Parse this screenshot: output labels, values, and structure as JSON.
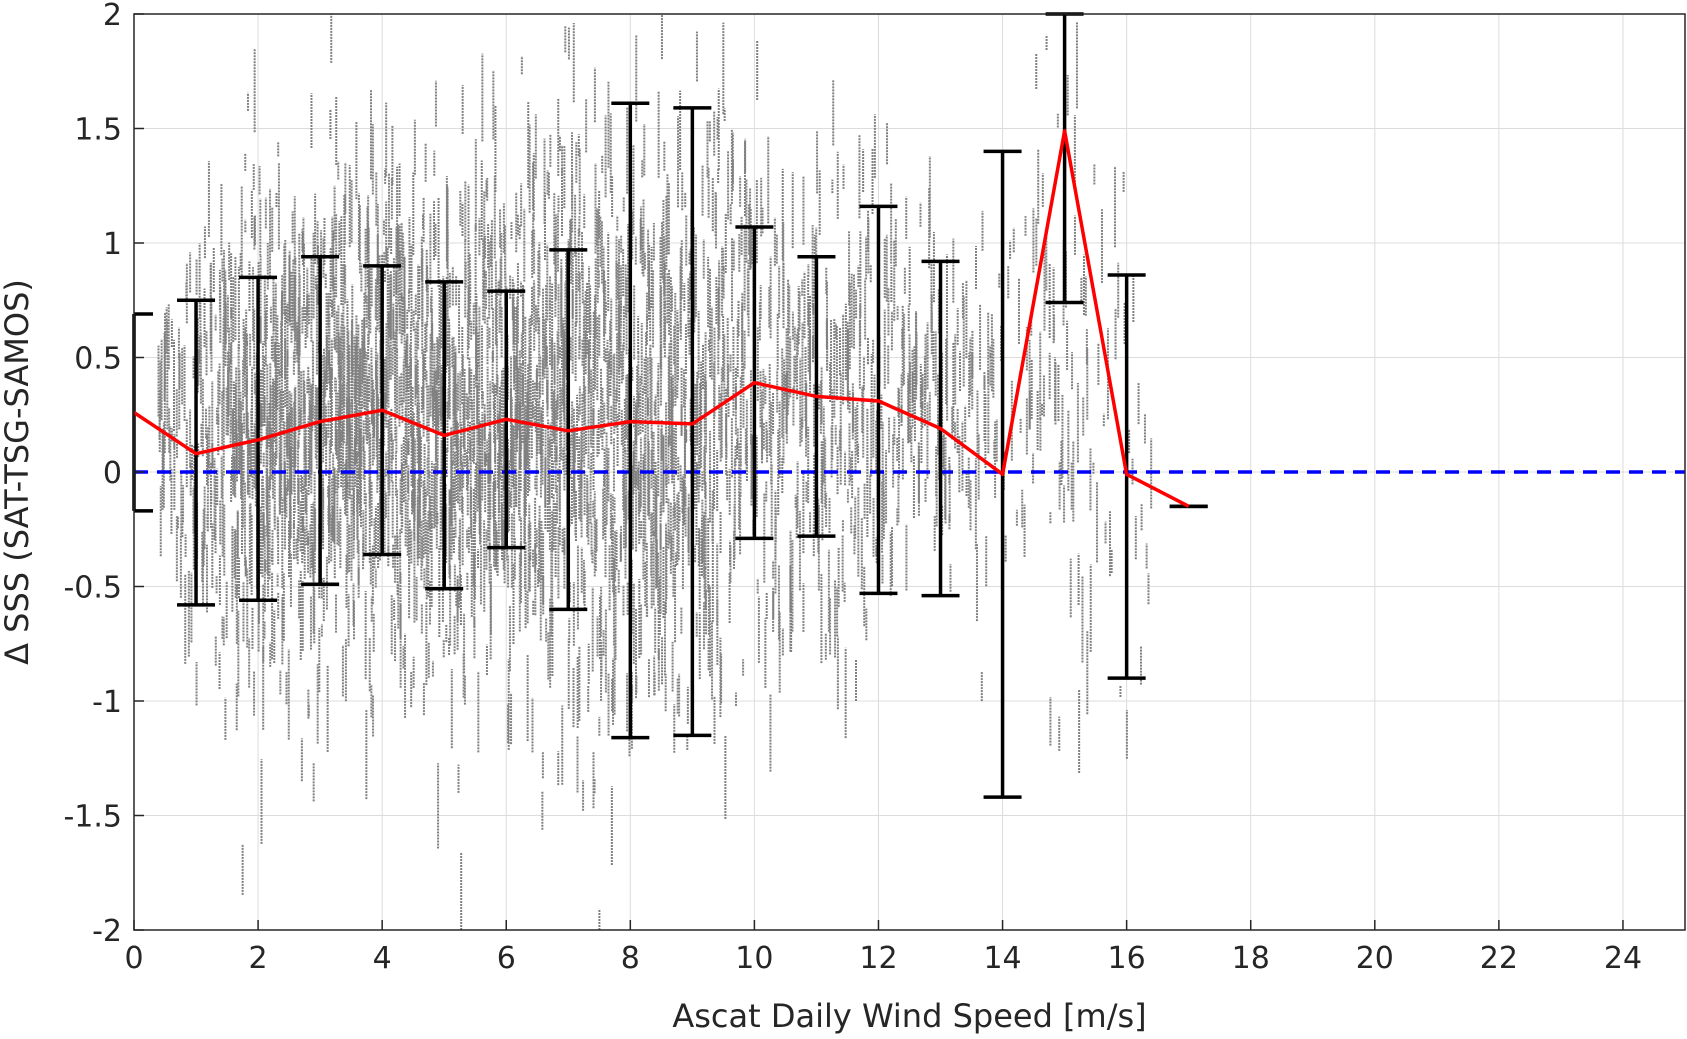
{
  "chart_data": {
    "type": "scatter",
    "xlabel": "Ascat Daily Wind Speed [m/s]",
    "ylabel": "Δ SSS (SAT-TSG-SAMOS)",
    "xlim": [
      0,
      25
    ],
    "ylim": [
      -2,
      2
    ],
    "xticks": [
      0,
      2,
      4,
      6,
      8,
      10,
      12,
      14,
      16,
      18,
      20,
      22,
      24
    ],
    "yticks": [
      -2,
      -1.5,
      -1,
      -0.5,
      0,
      0.5,
      1,
      1.5,
      2
    ],
    "xtick_labels": [
      "0",
      "2",
      "4",
      "6",
      "8",
      "10",
      "12",
      "14",
      "16",
      "18",
      "20",
      "22",
      "24"
    ],
    "ytick_labels": [
      "-2",
      "-1.5",
      "-1",
      "-0.5",
      "0",
      "0.5",
      "1",
      "1.5",
      "2"
    ],
    "grid": true,
    "reference_line": {
      "y": 0,
      "color": "#0000ff",
      "style": "dashed"
    },
    "scatter_color": "#808080",
    "scatter_spread": {
      "x": [
        0.5,
        1,
        2,
        3,
        4,
        5,
        6,
        7,
        8,
        9,
        10,
        11,
        12,
        13,
        14,
        15,
        16,
        16.5
      ],
      "center": [
        0.3,
        0.1,
        0.15,
        0.22,
        0.27,
        0.17,
        0.23,
        0.19,
        0.22,
        0.22,
        0.39,
        0.33,
        0.32,
        0.19,
        0.2,
        0.6,
        0.2,
        0.0
      ],
      "sd": [
        0.25,
        0.5,
        0.55,
        0.55,
        0.5,
        0.55,
        0.5,
        0.6,
        0.7,
        0.7,
        0.55,
        0.5,
        0.5,
        0.4,
        0.35,
        0.8,
        0.6,
        0.3
      ],
      "density": [
        0.3,
        0.4,
        1.0,
        1.0,
        1.0,
        1.0,
        1.0,
        0.95,
        0.9,
        0.8,
        0.5,
        0.45,
        0.4,
        0.3,
        0.15,
        0.2,
        0.12,
        0.04
      ]
    },
    "mean_series": {
      "color": "#ff0000",
      "x": [
        0,
        1,
        2,
        3,
        4,
        5,
        6,
        7,
        8,
        9,
        10,
        11,
        12,
        13,
        14,
        15,
        16,
        17
      ],
      "y": [
        0.26,
        0.08,
        0.14,
        0.22,
        0.27,
        0.16,
        0.23,
        0.18,
        0.22,
        0.21,
        0.39,
        0.33,
        0.31,
        0.19,
        -0.01,
        1.49,
        -0.01,
        -0.15
      ]
    },
    "error_bars": {
      "color": "#000000",
      "x": [
        0,
        1,
        2,
        3,
        4,
        5,
        6,
        7,
        8,
        9,
        10,
        11,
        12,
        13,
        14,
        15,
        16,
        17
      ],
      "lower": [
        -0.17,
        -0.58,
        -0.56,
        -0.49,
        -0.36,
        -0.51,
        -0.33,
        -0.6,
        -1.16,
        -1.15,
        -0.29,
        -0.28,
        -0.53,
        -0.54,
        -1.42,
        0.74,
        -0.9,
        -0.15
      ],
      "upper": [
        0.69,
        0.75,
        0.85,
        0.94,
        0.9,
        0.83,
        0.79,
        0.97,
        1.61,
        1.59,
        1.07,
        0.94,
        1.16,
        0.92,
        1.4,
        2.0,
        0.86,
        -0.15
      ]
    }
  }
}
